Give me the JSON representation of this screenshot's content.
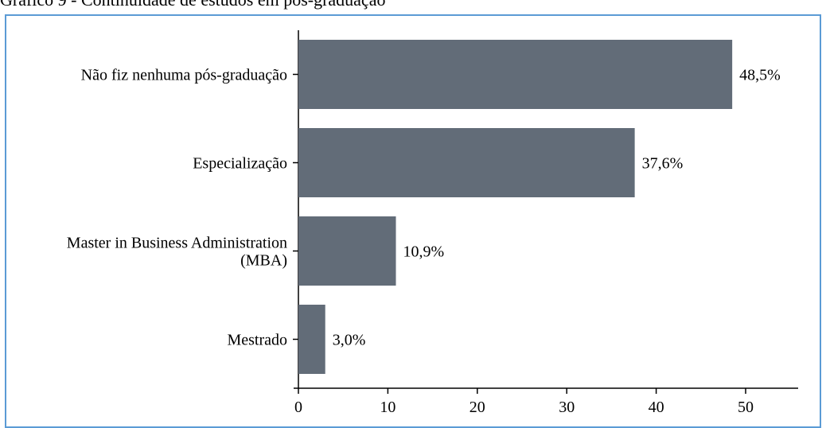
{
  "caption": "Gráfico 9 - Continuidade de estudos em pós-graduação",
  "chart_data": {
    "type": "bar",
    "orientation": "horizontal",
    "title": "",
    "xlabel": "",
    "ylabel": "",
    "categories": [
      [
        "Não fiz nenhuma pós-graduação"
      ],
      [
        "Especialização"
      ],
      [
        "Master in Business Administration",
        "(MBA)"
      ],
      [
        "Mestrado"
      ]
    ],
    "values": [
      48.5,
      37.6,
      10.9,
      3.0
    ],
    "value_labels": [
      "48,5%",
      "37,6%",
      "10,9%",
      "3,0%"
    ],
    "xlim": [
      0,
      56
    ],
    "xticks": [
      0,
      10,
      20,
      30,
      40,
      50
    ],
    "bar_color": "#626c78",
    "grid": false
  }
}
